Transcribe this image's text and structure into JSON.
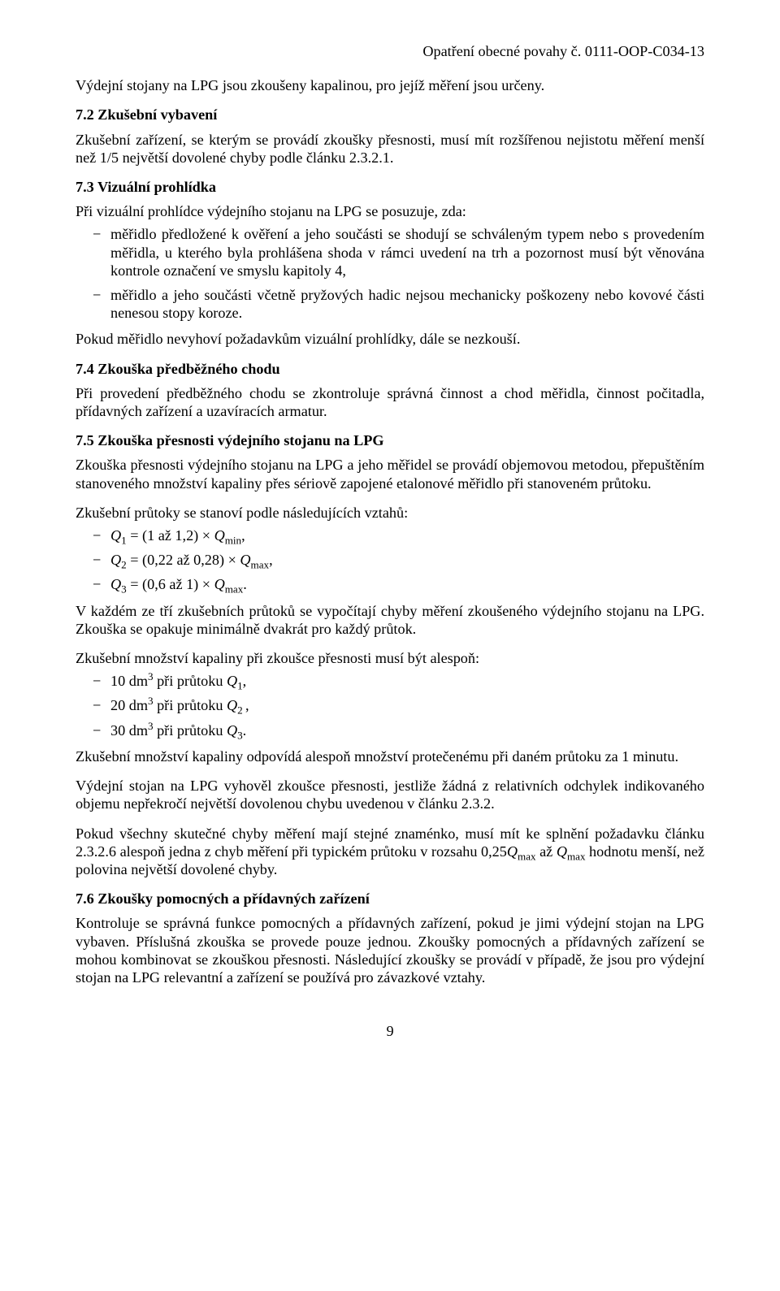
{
  "header": {
    "right": "Opatření obecné povahy č. 0111-OOP-C034-13"
  },
  "p_intro": "Výdejní stojany na LPG jsou zkoušeny kapalinou, pro jejíž měření jsou určeny.",
  "s72": {
    "head": "7.2  Zkušební vybavení",
    "p1": "Zkušební zařízení, se kterým se provádí zkoušky přesnosti, musí mít rozšířenou nejistotu měření menší než 1/5 největší dovolené chyby podle článku 2.3.2.1."
  },
  "s73": {
    "head": "7.3  Vizuální prohlídka",
    "p1": "Při vizuální prohlídce výdejního stojanu na LPG se posuzuje, zda:",
    "li1": "měřidlo předložené k ověření a jeho součásti se shodují se schváleným typem nebo s provedením měřidla, u kterého byla prohlášena shoda v rámci uvedení na trh a pozornost musí být věnována kontrole označení ve smyslu kapitoly 4,",
    "li2": "měřidlo a jeho součásti včetně pryžových hadic nejsou mechanicky poškozeny nebo kovové části nenesou stopy koroze.",
    "p2": "Pokud měřidlo nevyhoví požadavkům vizuální prohlídky, dále se nezkouší."
  },
  "s74": {
    "head": "7.4  Zkouška předběžného chodu",
    "p1": "Při provedení předběžného chodu se zkontroluje správná činnost a chod měřidla, činnost počitadla, přídavných zařízení a uzavíracích armatur."
  },
  "s75": {
    "head": "7.5  Zkouška přesnosti výdejního stojanu na LPG",
    "p1": "Zkouška přesnosti výdejního stojanu na LPG a jeho měřidel se provádí objemovou metodou, přepuštěním stanoveného množství kapaliny přes sériově zapojené etalonové měřidlo při stanoveném průtoku.",
    "p2": "Zkušební průtoky se stanoví podle následujících vztahů:",
    "p3": "V každém ze tří zkušebních průtoků se vypočítají chyby měření zkoušeného výdejního stojanu na LPG. Zkouška se opakuje minimálně dvakrát pro každý průtok.",
    "p4": "Zkušební množství kapaliny při zkoušce přesnosti musí být alespoň:",
    "p5": "Zkušební množství kapaliny odpovídá alespoň množství protečenému při daném průtoku za 1 minutu.",
    "p6": "Výdejní stojan na LPG vyhověl zkoušce přesnosti, jestliže žádná z relativních odchylek indikovaného objemu nepřekročí největší dovolenou chybu uvedenou v článku 2.3.2.",
    "p7_a": "Pokud všechny skutečné chyby měření mají stejné znaménko, musí mít ke splnění požadavku článku 2.3.2.6 alespoň jedna z chyb měření při typickém průtoku v rozsahu 0,25",
    "p7_b": " až ",
    "p7_c": " hodnotu menší, než polovina největší dovolené chyby."
  },
  "s76": {
    "head": "7.6  Zkoušky pomocných a přídavných zařízení",
    "p1": "Kontroluje se správná funkce pomocných a přídavných zařízení, pokud je jimi výdejní stojan na LPG vybaven. Příslušná zkouška se provede pouze jednou. Zkoušky pomocných a přídavných zařízení se mohou kombinovat se zkouškou přesnosti. Následující zkoušky se provádí v případě, že jsou pro výdejní stojan na LPG relevantní a zařízení se používá pro závazkové vztahy."
  },
  "page_number": "9"
}
